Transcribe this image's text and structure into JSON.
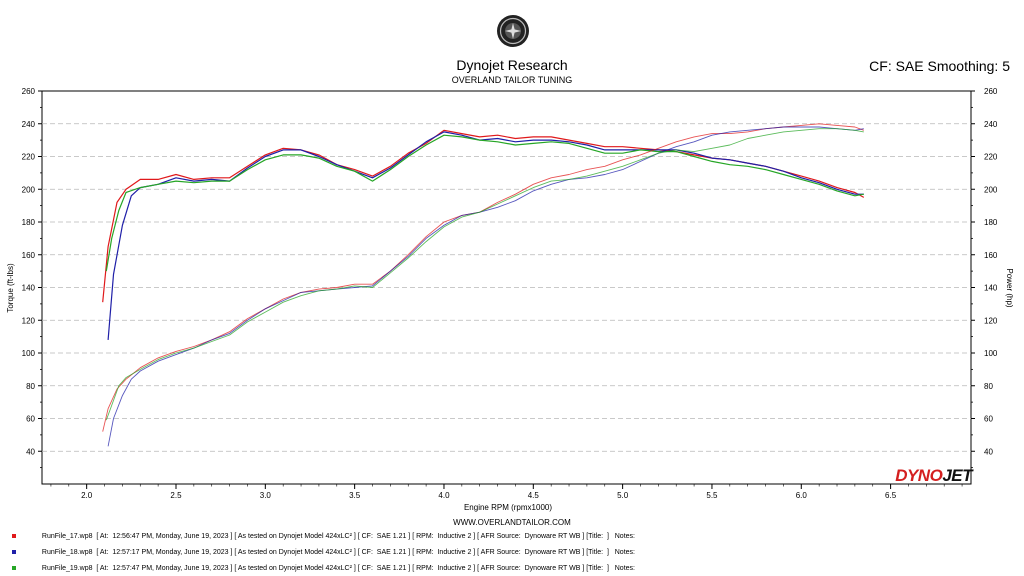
{
  "header": {
    "title": "Dynojet Research",
    "subtitle": "OVERLAND TAILOR TUNING",
    "cf_label": "CF: SAE Smoothing: 5",
    "website": "WWW.OVERLANDTAILOR.COM",
    "brand_left": "DYNO",
    "brand_right": "JET"
  },
  "colors": {
    "run17": "#e0191b",
    "run18": "#1f1fa8",
    "run19": "#26a626",
    "grid": "#b8b8b8",
    "brand_red": "#d41f1f",
    "brand_dark": "#111111"
  },
  "legend": [
    {
      "name": "RunFile_17.wp8",
      "color": "#e0191b",
      "text": "[ At:  12:56:47 PM, Monday, June 19, 2023 ] [ As tested on Dynojet Model 424xLC² ] [ CF:  SAE 1.21 ] [ RPM:  Inductive 2 ] [ AFR Source:  Dynoware RT WB ] [Title:  ]   Notes:"
    },
    {
      "name": "RunFile_18.wp8",
      "color": "#1f1fa8",
      "text": "[ At:  12:57:17 PM, Monday, June 19, 2023 ] [ As tested on Dynojet Model 424xLC² ] [ CF:  SAE 1.21 ] [ RPM:  Inductive 2 ] [ AFR Source:  Dynoware RT WB ] [Title:  ]   Notes:"
    },
    {
      "name": "RunFile_19.wp8",
      "color": "#26a626",
      "text": "[ At:  12:57:47 PM, Monday, June 19, 2023 ] [ As tested on Dynojet Model 424xLC² ] [ CF:  SAE 1.21 ] [ RPM:  Inductive 2 ] [ AFR Source:  Dynoware RT WB ] [Title:  ]   Notes:"
    }
  ],
  "chart_data": {
    "type": "line",
    "xlabel": "Engine RPM (rpmx1000)",
    "ylabel_left": "Torque (ft-lbs)",
    "ylabel_right": "Power (hp)",
    "xlim": [
      1.75,
      6.95
    ],
    "ylim": [
      20,
      260
    ],
    "x_ticks": [
      2.0,
      2.5,
      3.0,
      3.5,
      4.0,
      4.5,
      5.0,
      5.5,
      6.0,
      6.5
    ],
    "y_ticks": [
      40,
      60,
      80,
      100,
      120,
      140,
      160,
      180,
      200,
      220,
      240,
      260
    ],
    "grid": true,
    "series": [
      {
        "name": "RunFile_17.wp8",
        "measure": "torque",
        "color": "#e0191b",
        "x": [
          2.09,
          2.12,
          2.17,
          2.22,
          2.3,
          2.4,
          2.5,
          2.6,
          2.7,
          2.8,
          2.9,
          3.0,
          3.1,
          3.2,
          3.3,
          3.4,
          3.5,
          3.6,
          3.7,
          3.8,
          3.9,
          4.0,
          4.1,
          4.2,
          4.3,
          4.4,
          4.5,
          4.6,
          4.7,
          4.8,
          4.9,
          5.0,
          5.1,
          5.2,
          5.3,
          5.4,
          5.5,
          5.6,
          5.7,
          5.8,
          5.9,
          6.0,
          6.1,
          6.2,
          6.3,
          6.35
        ],
        "y": [
          131,
          165,
          192,
          200,
          206,
          206,
          209,
          206,
          207,
          207,
          214,
          221,
          225,
          224,
          221,
          215,
          212,
          208,
          214,
          222,
          228,
          236,
          234,
          232,
          233,
          231,
          232,
          232,
          230,
          228,
          226,
          226,
          225,
          224,
          223,
          221,
          219,
          218,
          216,
          214,
          211,
          208,
          205,
          201,
          198,
          195
        ]
      },
      {
        "name": "RunFile_18.wp8",
        "measure": "torque",
        "color": "#1f1fa8",
        "x": [
          2.12,
          2.15,
          2.2,
          2.25,
          2.3,
          2.4,
          2.5,
          2.6,
          2.7,
          2.8,
          2.9,
          3.0,
          3.1,
          3.2,
          3.3,
          3.4,
          3.5,
          3.6,
          3.7,
          3.8,
          3.9,
          4.0,
          4.1,
          4.2,
          4.3,
          4.4,
          4.5,
          4.6,
          4.7,
          4.8,
          4.9,
          5.0,
          5.1,
          5.2,
          5.3,
          5.4,
          5.5,
          5.6,
          5.7,
          5.8,
          5.9,
          6.0,
          6.1,
          6.2,
          6.3,
          6.35
        ],
        "y": [
          108,
          148,
          178,
          196,
          201,
          203,
          207,
          205,
          206,
          205,
          213,
          220,
          224,
          224,
          220,
          215,
          211,
          207,
          213,
          221,
          229,
          235,
          233,
          230,
          231,
          229,
          230,
          230,
          229,
          227,
          224,
          224,
          224,
          224,
          224,
          222,
          219,
          218,
          216,
          214,
          211,
          207,
          204,
          200,
          197,
          197
        ]
      },
      {
        "name": "RunFile_19.wp8",
        "measure": "torque",
        "color": "#26a626",
        "x": [
          2.11,
          2.14,
          2.18,
          2.22,
          2.3,
          2.4,
          2.5,
          2.6,
          2.7,
          2.8,
          2.9,
          3.0,
          3.1,
          3.2,
          3.3,
          3.4,
          3.5,
          3.6,
          3.7,
          3.8,
          3.9,
          4.0,
          4.1,
          4.2,
          4.3,
          4.4,
          4.5,
          4.6,
          4.7,
          4.8,
          4.9,
          5.0,
          5.1,
          5.2,
          5.3,
          5.4,
          5.5,
          5.6,
          5.7,
          5.8,
          5.9,
          6.0,
          6.1,
          6.2,
          6.3,
          6.35
        ],
        "y": [
          150,
          170,
          187,
          198,
          201,
          203,
          205,
          204,
          205,
          205,
          212,
          218,
          221,
          221,
          219,
          214,
          211,
          205,
          212,
          220,
          227,
          233,
          232,
          230,
          229,
          227,
          228,
          229,
          228,
          225,
          222,
          222,
          224,
          223,
          223,
          220,
          217,
          215,
          214,
          212,
          209,
          206,
          203,
          199,
          196,
          197
        ]
      },
      {
        "name": "RunFile_17.wp8",
        "measure": "power",
        "color": "#e0191b",
        "x": [
          2.09,
          2.12,
          2.17,
          2.22,
          2.3,
          2.4,
          2.5,
          2.6,
          2.7,
          2.8,
          2.9,
          3.0,
          3.1,
          3.2,
          3.3,
          3.4,
          3.5,
          3.6,
          3.7,
          3.8,
          3.9,
          4.0,
          4.1,
          4.2,
          4.3,
          4.4,
          4.5,
          4.6,
          4.7,
          4.8,
          4.9,
          5.0,
          5.1,
          5.2,
          5.3,
          5.4,
          5.5,
          5.6,
          5.7,
          5.8,
          5.9,
          6.0,
          6.1,
          6.2,
          6.3,
          6.35
        ],
        "y": [
          52,
          66,
          78,
          84,
          91,
          97,
          101,
          104,
          108,
          113,
          121,
          127,
          133,
          137,
          139,
          140,
          142,
          142,
          150,
          160,
          171,
          180,
          184,
          186,
          192,
          197,
          203,
          207,
          209,
          212,
          214,
          218,
          221,
          225,
          229,
          232,
          234,
          234,
          235,
          237,
          238,
          239,
          240,
          239,
          238,
          236
        ]
      },
      {
        "name": "RunFile_18.wp8",
        "measure": "power",
        "color": "#1f1fa8",
        "x": [
          2.12,
          2.15,
          2.2,
          2.25,
          2.3,
          2.4,
          2.5,
          2.6,
          2.7,
          2.8,
          2.9,
          3.0,
          3.1,
          3.2,
          3.3,
          3.4,
          3.5,
          3.6,
          3.7,
          3.8,
          3.9,
          4.0,
          4.1,
          4.2,
          4.3,
          4.4,
          4.5,
          4.6,
          4.7,
          4.8,
          4.9,
          5.0,
          5.1,
          5.2,
          5.3,
          5.4,
          5.5,
          5.6,
          5.7,
          5.8,
          5.9,
          6.0,
          6.1,
          6.2,
          6.3,
          6.35
        ],
        "y": [
          43,
          60,
          74,
          84,
          89,
          95,
          99,
          103,
          108,
          112,
          120,
          127,
          132,
          137,
          138,
          139,
          140,
          141,
          150,
          159,
          170,
          178,
          184,
          186,
          189,
          193,
          199,
          203,
          206,
          207,
          209,
          212,
          217,
          222,
          226,
          229,
          233,
          235,
          236,
          237,
          238,
          238,
          238,
          237,
          236,
          237
        ]
      },
      {
        "name": "RunFile_19.wp8",
        "measure": "power",
        "color": "#26a626",
        "x": [
          2.11,
          2.14,
          2.18,
          2.22,
          2.3,
          2.4,
          2.5,
          2.6,
          2.7,
          2.8,
          2.9,
          3.0,
          3.1,
          3.2,
          3.3,
          3.4,
          3.5,
          3.6,
          3.7,
          3.8,
          3.9,
          4.0,
          4.1,
          4.2,
          4.3,
          4.4,
          4.5,
          4.6,
          4.7,
          4.8,
          4.9,
          5.0,
          5.1,
          5.2,
          5.3,
          5.4,
          5.5,
          5.6,
          5.7,
          5.8,
          5.9,
          6.0,
          6.1,
          6.2,
          6.3,
          6.35
        ],
        "y": [
          59,
          68,
          80,
          85,
          90,
          96,
          100,
          103,
          107,
          111,
          119,
          125,
          131,
          135,
          138,
          139,
          141,
          140,
          149,
          158,
          168,
          177,
          183,
          186,
          191,
          196,
          201,
          205,
          206,
          208,
          211,
          214,
          218,
          222,
          224,
          223,
          225,
          227,
          231,
          233,
          235,
          236,
          237,
          237,
          236,
          235
        ]
      }
    ]
  }
}
